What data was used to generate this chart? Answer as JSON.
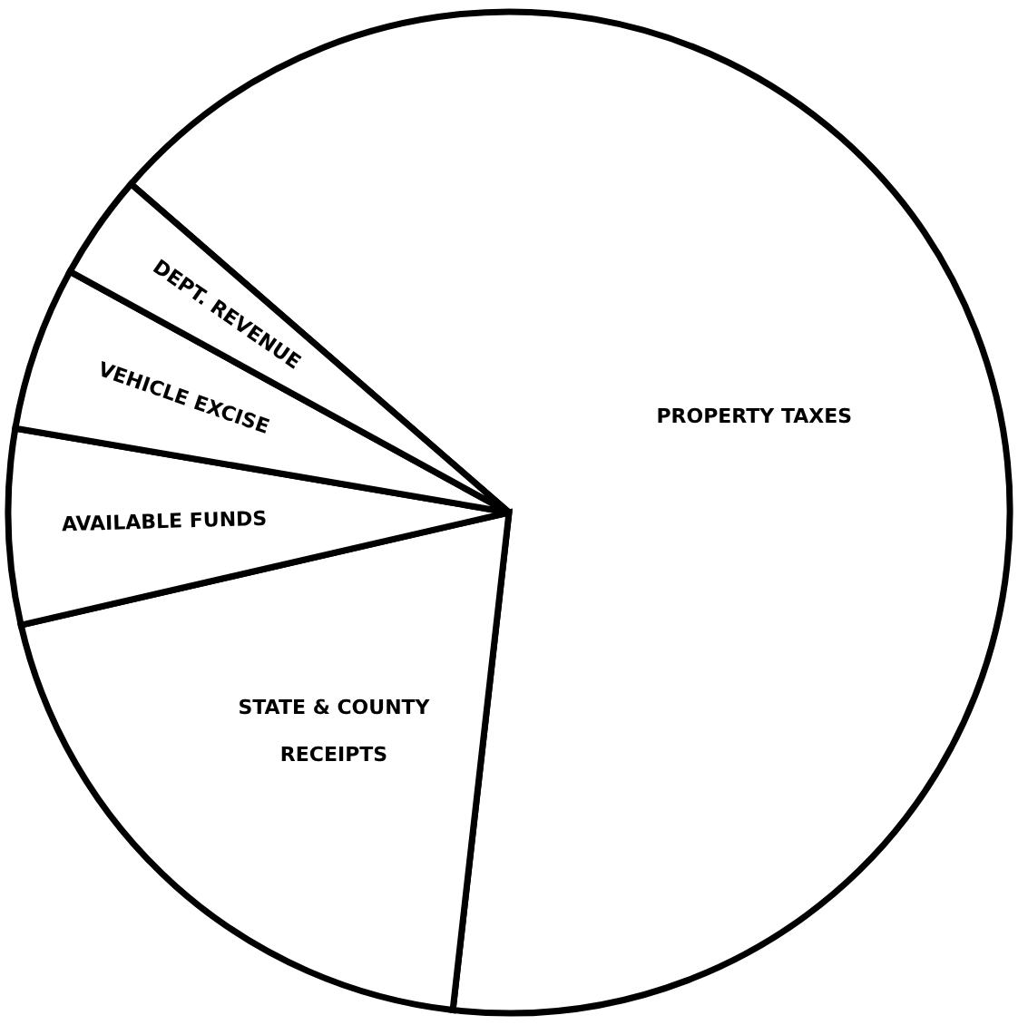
{
  "chart_data": {
    "type": "pie",
    "categories": [
      "PROPERTY TAXES",
      "STATE & COUNTY RECEIPTS",
      "AVAILABLE FUNDS",
      "VEHICLE EXCISE",
      "DEPT. REVENUE"
    ],
    "values": [
      65.4,
      19.6,
      6.3,
      5.3,
      3.4
    ],
    "colors": [
      "#ffffff",
      "#ffffff",
      "#ffffff",
      "#ffffff",
      "#ffffff"
    ]
  }
}
